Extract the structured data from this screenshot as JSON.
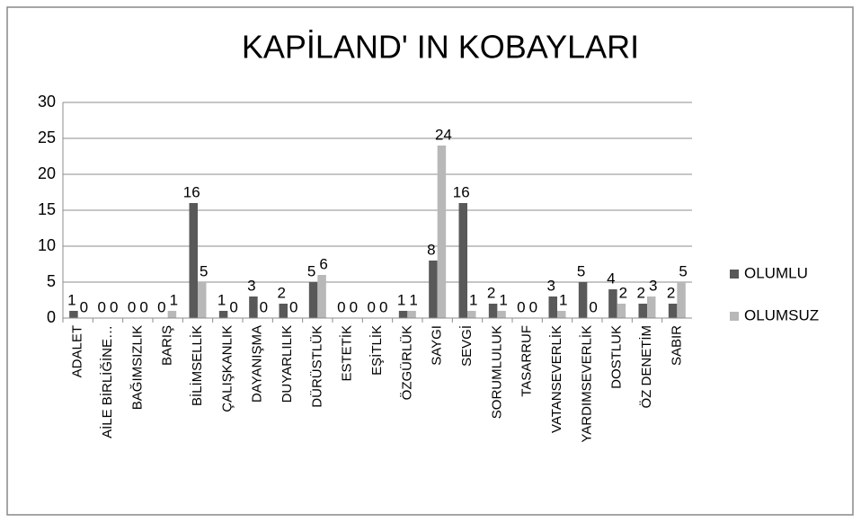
{
  "chart_data": {
    "type": "bar",
    "title": "KAPİLAND' IN KOBAYLARI",
    "categories": [
      "ADALET",
      "AİLE BİRLİĞİNE…",
      "BAĞIMSIZLIK",
      "BARIŞ",
      "BİLİMSELLİK",
      "ÇALIŞKANLIK",
      "DAYANIŞMA",
      "DUYARLILIK",
      "DÜRÜSTLÜK",
      "ESTETİK",
      "EŞİTLİK",
      "ÖZGÜRLÜK",
      "SAYGI",
      "SEVGİ",
      "SORUMLULUK",
      "TASARRUF",
      "VATANSEVERLİK",
      "YARDIMSEVERLİK",
      "DOSTLUK",
      "ÖZ DENETİM",
      "SABIR"
    ],
    "series": [
      {
        "name": "OLUMLU",
        "color": "#595959",
        "values": [
          1,
          0,
          0,
          0,
          16,
          1,
          3,
          2,
          5,
          0,
          0,
          1,
          8,
          16,
          2,
          0,
          3,
          5,
          4,
          2,
          2
        ]
      },
      {
        "name": "OLUMSUZ",
        "color": "#b8b8b8",
        "values": [
          0,
          0,
          0,
          1,
          5,
          0,
          0,
          0,
          6,
          0,
          0,
          1,
          24,
          1,
          1,
          0,
          1,
          0,
          2,
          3,
          5
        ]
      }
    ],
    "ylim": [
      0,
      30
    ],
    "yticks": [
      0,
      5,
      10,
      15,
      20,
      25,
      30
    ],
    "grid": true,
    "legend": "right"
  }
}
